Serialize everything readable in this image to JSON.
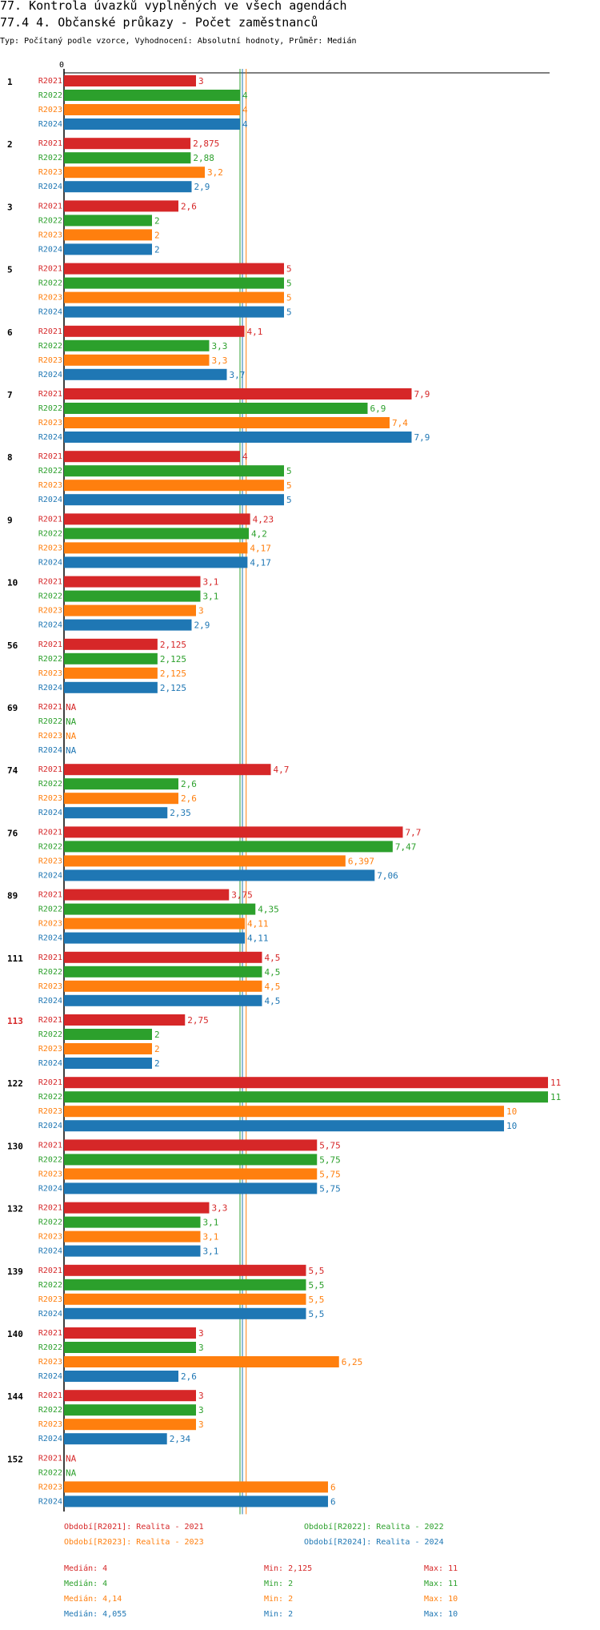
{
  "chart_data": {
    "type": "bar",
    "orientation": "horizontal",
    "title": "77. Kontrola úvazků vyplněných ve všech agendách",
    "subtitle": "77.4 4. Občanské průkazy - Počet zaměstnanců",
    "description": "Typ: Počítaný podle vzorce, Vyhodnocení: Absolutní hodnoty, Průměr: Medián",
    "x_axis_tick": "0",
    "xlim": [
      0,
      11
    ],
    "grid": false,
    "highlighted_group": "113",
    "series": [
      {
        "code": "R2021",
        "color": "#d62728"
      },
      {
        "code": "R2022",
        "color": "#2ca02c"
      },
      {
        "code": "R2023",
        "color": "#ff7f0e"
      },
      {
        "code": "R2024",
        "color": "#1f77b4"
      }
    ],
    "reference_lines": [
      {
        "series": "R2021",
        "value": 4,
        "color": "#d62728"
      },
      {
        "series": "R2022",
        "value": 4,
        "color": "#2ca02c"
      },
      {
        "series": "R2023",
        "value": 4.14,
        "color": "#ff7f0e"
      },
      {
        "series": "R2024",
        "value": 4.055,
        "color": "#1f77b4"
      }
    ],
    "groups": [
      {
        "label": "1",
        "values": [
          3,
          4,
          4,
          4
        ],
        "labels": [
          "3",
          "4",
          "4",
          "4"
        ]
      },
      {
        "label": "2",
        "values": [
          2.875,
          2.88,
          3.2,
          2.9
        ],
        "labels": [
          "2,875",
          "2,88",
          "3,2",
          "2,9"
        ]
      },
      {
        "label": "3",
        "values": [
          2.6,
          2,
          2,
          2
        ],
        "labels": [
          "2,6",
          "2",
          "2",
          "2"
        ]
      },
      {
        "label": "5",
        "values": [
          5,
          5,
          5,
          5
        ],
        "labels": [
          "5",
          "5",
          "5",
          "5"
        ]
      },
      {
        "label": "6",
        "values": [
          4.1,
          3.3,
          3.3,
          3.7
        ],
        "labels": [
          "4,1",
          "3,3",
          "3,3",
          "3,7"
        ]
      },
      {
        "label": "7",
        "values": [
          7.9,
          6.9,
          7.4,
          7.9
        ],
        "labels": [
          "7,9",
          "6,9",
          "7,4",
          "7,9"
        ]
      },
      {
        "label": "8",
        "values": [
          4,
          5,
          5,
          5
        ],
        "labels": [
          "4",
          "5",
          "5",
          "5"
        ]
      },
      {
        "label": "9",
        "values": [
          4.23,
          4.2,
          4.17,
          4.17
        ],
        "labels": [
          "4,23",
          "4,2",
          "4,17",
          "4,17"
        ]
      },
      {
        "label": "10",
        "values": [
          3.1,
          3.1,
          3,
          2.9
        ],
        "labels": [
          "3,1",
          "3,1",
          "3",
          "2,9"
        ]
      },
      {
        "label": "56",
        "values": [
          2.125,
          2.125,
          2.125,
          2.125
        ],
        "labels": [
          "2,125",
          "2,125",
          "2,125",
          "2,125"
        ]
      },
      {
        "label": "69",
        "values": [
          null,
          null,
          null,
          null
        ],
        "labels": [
          "NA",
          "NA",
          "NA",
          "NA"
        ]
      },
      {
        "label": "74",
        "values": [
          4.7,
          2.6,
          2.6,
          2.35
        ],
        "labels": [
          "4,7",
          "2,6",
          "2,6",
          "2,35"
        ]
      },
      {
        "label": "76",
        "values": [
          7.7,
          7.47,
          6.397,
          7.06
        ],
        "labels": [
          "7,7",
          "7,47",
          "6,397",
          "7,06"
        ]
      },
      {
        "label": "89",
        "values": [
          3.75,
          4.35,
          4.11,
          4.11
        ],
        "labels": [
          "3,75",
          "4,35",
          "4,11",
          "4,11"
        ]
      },
      {
        "label": "111",
        "values": [
          4.5,
          4.5,
          4.5,
          4.5
        ],
        "labels": [
          "4,5",
          "4,5",
          "4,5",
          "4,5"
        ]
      },
      {
        "label": "113",
        "values": [
          2.75,
          2,
          2,
          2
        ],
        "labels": [
          "2,75",
          "2",
          "2",
          "2"
        ]
      },
      {
        "label": "122",
        "values": [
          11,
          11,
          10,
          10
        ],
        "labels": [
          "11",
          "11",
          "10",
          "10"
        ]
      },
      {
        "label": "130",
        "values": [
          5.75,
          5.75,
          5.75,
          5.75
        ],
        "labels": [
          "5,75",
          "5,75",
          "5,75",
          "5,75"
        ]
      },
      {
        "label": "132",
        "values": [
          3.3,
          3.1,
          3.1,
          3.1
        ],
        "labels": [
          "3,3",
          "3,1",
          "3,1",
          "3,1"
        ]
      },
      {
        "label": "139",
        "values": [
          5.5,
          5.5,
          5.5,
          5.5
        ],
        "labels": [
          "5,5",
          "5,5",
          "5,5",
          "5,5"
        ]
      },
      {
        "label": "140",
        "values": [
          3,
          3,
          6.25,
          2.6
        ],
        "labels": [
          "3",
          "3",
          "6,25",
          "2,6"
        ]
      },
      {
        "label": "144",
        "values": [
          3,
          3,
          3,
          2.34
        ],
        "labels": [
          "3",
          "3",
          "3",
          "2,34"
        ]
      },
      {
        "label": "152",
        "values": [
          null,
          null,
          6,
          6
        ],
        "labels": [
          "NA",
          "NA",
          "6",
          "6"
        ]
      }
    ],
    "legend": [
      "Období[R2021]: Realita - 2021",
      "Období[R2022]: Realita - 2022",
      "Období[R2023]: Realita - 2023",
      "Období[R2024]: Realita - 2024"
    ],
    "stats": [
      {
        "median": "Medián: 4",
        "min": "Min: 2,125",
        "max": "Max: 11"
      },
      {
        "median": "Medián: 4",
        "min": "Min: 2",
        "max": "Max: 11"
      },
      {
        "median": "Medián: 4,14",
        "min": "Min: 2",
        "max": "Max: 10"
      },
      {
        "median": "Medián: 4,055",
        "min": "Min: 2",
        "max": "Max: 10"
      }
    ]
  }
}
